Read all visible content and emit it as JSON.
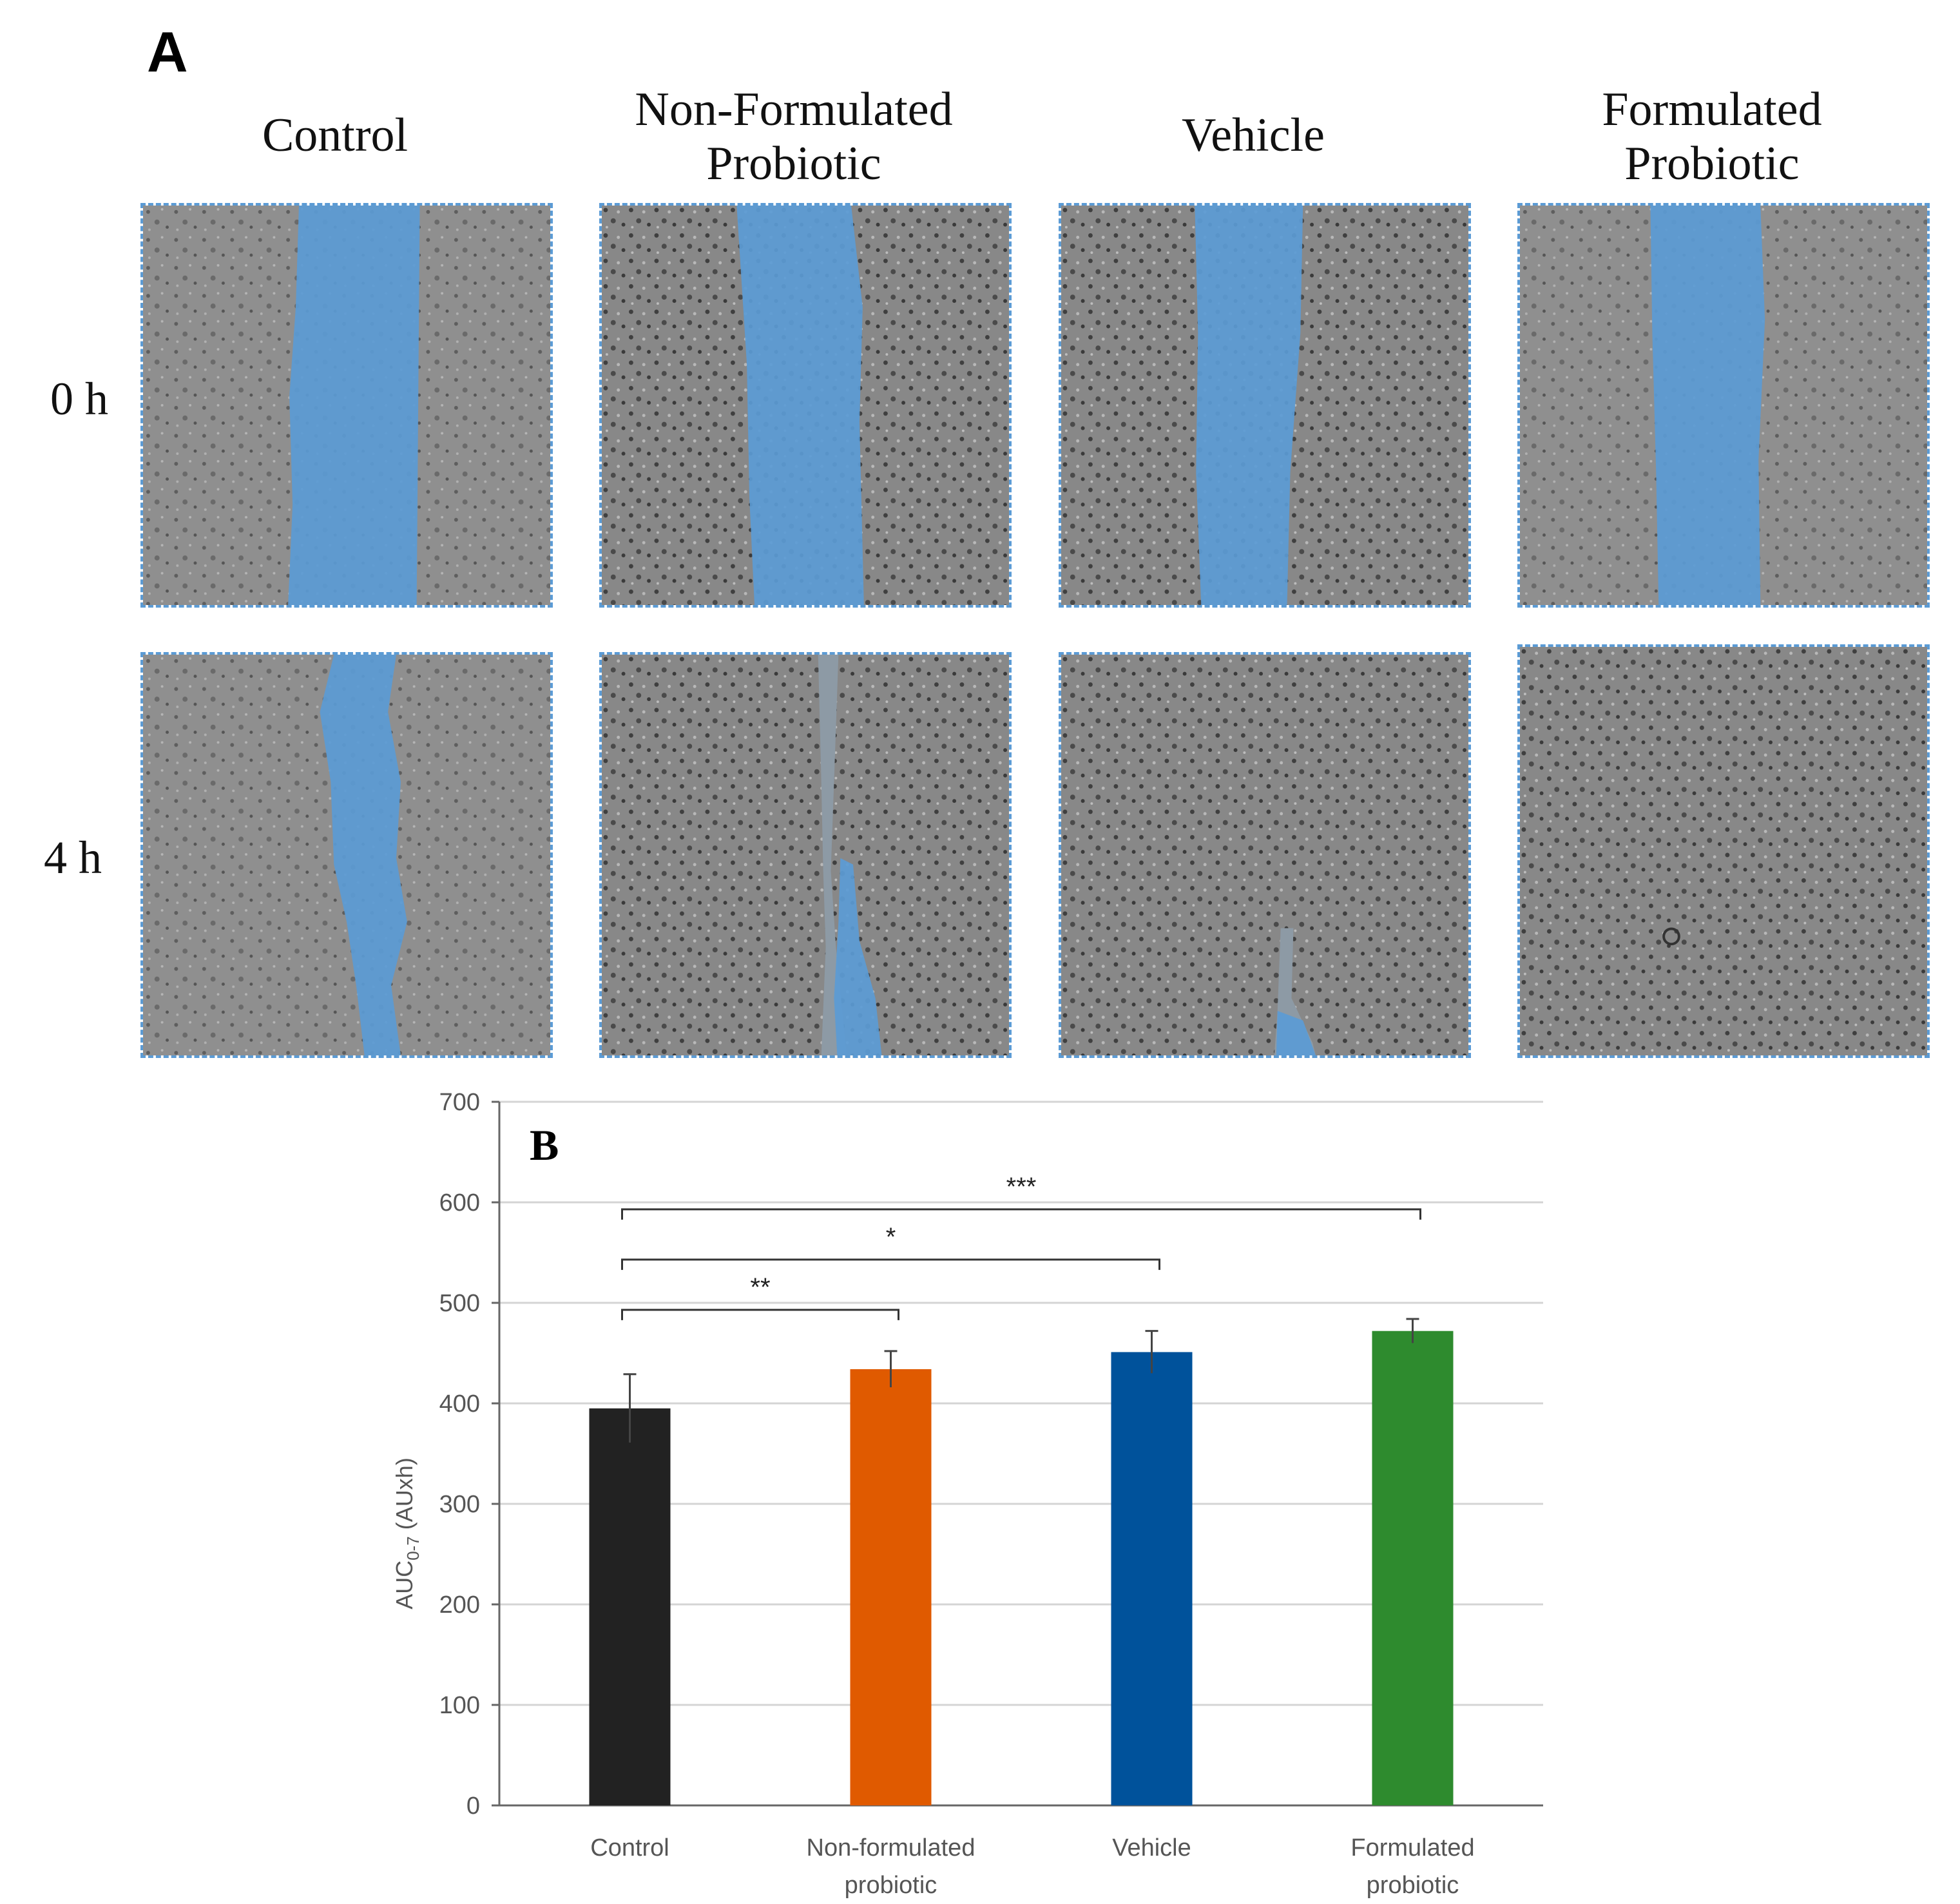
{
  "panel_a": {
    "letter": "A",
    "columns": [
      "Control",
      "Non-Formulated\nProbiotic",
      "Vehicle",
      "Formulated\nProbiotic"
    ],
    "rows": [
      "0 h",
      "4 h"
    ],
    "colors": {
      "wound": "#5b9bd5",
      "cells": "#8a8a8a",
      "border": "#5b9bd5"
    }
  },
  "panel_b": {
    "letter": "B"
  },
  "chart_data": {
    "type": "bar",
    "categories": [
      "Control",
      "Non-formulated\nprobiotic",
      "Vehicle",
      "Formulated\nprobiotic"
    ],
    "values": [
      395,
      434,
      451,
      472
    ],
    "errors": [
      34,
      18,
      21,
      12
    ],
    "colors": [
      "#222222",
      "#e05a00",
      "#00529b",
      "#2e8b2e"
    ],
    "ylim": [
      0,
      700
    ],
    "yticks": [
      0,
      100,
      200,
      300,
      400,
      500,
      600,
      700
    ],
    "ylabel_main": "AUC",
    "ylabel_sub": "0-7",
    "ylabel_unit": " (AUxh)",
    "grid": true,
    "significance": [
      {
        "from": 0,
        "to": 1,
        "label": "**",
        "level": 493
      },
      {
        "from": 0,
        "to": 2,
        "label": "*",
        "level": 543
      },
      {
        "from": 0,
        "to": 3,
        "label": "***",
        "level": 593
      }
    ]
  }
}
